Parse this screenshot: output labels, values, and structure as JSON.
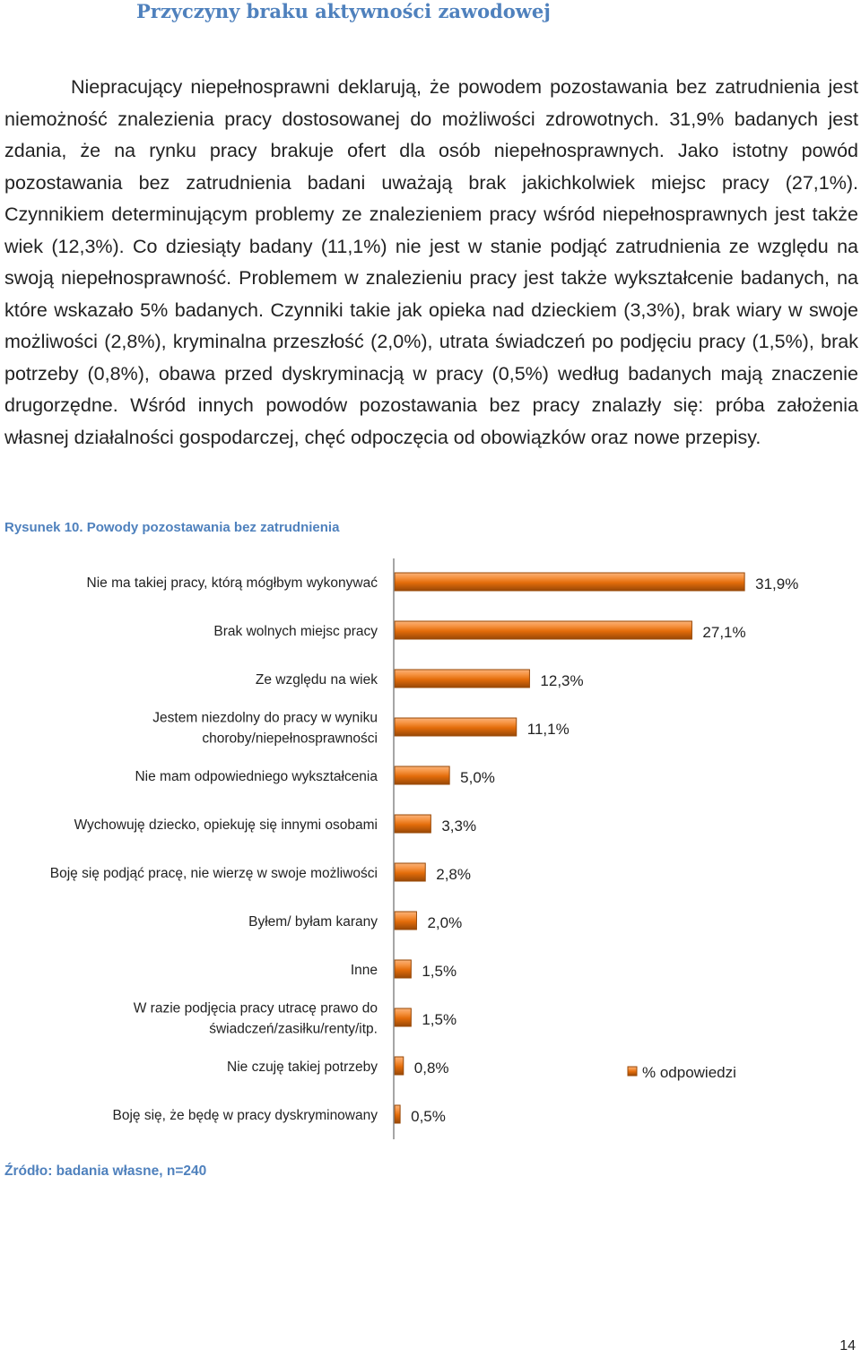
{
  "heading": "Przyczyny braku aktywności zawodowej",
  "paragraph": "Niepracujący niepełnosprawni deklarują, że powodem pozostawania bez zatrudnienia jest niemożność znalezienia pracy dostosowanej do możliwości zdrowotnych. 31,9% badanych jest zdania, że na rynku pracy brakuje ofert dla osób niepełnosprawnych. Jako istotny powód pozostawania bez zatrudnienia badani uważają brak jakichkolwiek miejsc pracy (27,1%). Czynnikiem determinującym problemy ze znalezieniem pracy wśród niepełnosprawnych jest także wiek (12,3%). Co dziesiąty badany (11,1%) nie jest w stanie podjąć zatrudnienia ze względu na swoją niepełnosprawność. Problemem w znalezieniu pracy jest także wykształcenie badanych, na które wskazało 5% badanych. Czynniki takie jak opieka nad dzieckiem (3,3%), brak wiary w swoje możliwości (2,8%), kryminalna przeszłość (2,0%), utrata świadczeń po podjęciu pracy (1,5%), brak potrzeby (0,8%), obawa przed dyskryminacją w pracy (0,5%) według badanych mają znaczenie drugorzędne. Wśród innych powodów pozostawania bez pracy znalazły się: próba założenia własnej działalności gospodarczej, chęć odpoczęcia od obowiązków oraz nowe przepisy.",
  "figure_caption": "Rysunek 10. Powody pozostawania bez zatrudnienia",
  "source": "Źródło: badania własne, n=240",
  "page_number": "14",
  "colors": {
    "accent": "#4f81bd",
    "bar": "#e36c0a",
    "bar_dark": "#984807",
    "bar_light": "#f9b27a"
  },
  "chart_data": {
    "type": "bar",
    "orientation": "horizontal",
    "categories": [
      [
        "Nie ma takiej pracy, którą mógłbym wykonywać"
      ],
      [
        "Brak wolnych miejsc pracy"
      ],
      [
        "Ze względu na wiek"
      ],
      [
        "Jestem niezdolny do pracy w wyniku",
        "choroby/niepełnosprawności"
      ],
      [
        "Nie mam odpowiedniego wykształcenia"
      ],
      [
        "Wychowuję dziecko, opiekuję się innymi osobami"
      ],
      [
        "Boję się podjąć pracę, nie wierzę w swoje możliwości"
      ],
      [
        "Byłem/ byłam karany"
      ],
      [
        "Inne"
      ],
      [
        "W razie podjęcia pracy utracę prawo do",
        "świadczeń/zasiłku/renty/itp."
      ],
      [
        "Nie czuję takiej potrzeby"
      ],
      [
        "Boję się, że będę w pracy dyskryminowany"
      ]
    ],
    "values": [
      31.9,
      27.1,
      12.3,
      11.1,
      5.0,
      3.3,
      2.8,
      2.0,
      1.5,
      1.5,
      0.8,
      0.5
    ],
    "value_labels": [
      "31,9%",
      "27,1%",
      "12,3%",
      "11,1%",
      "5,0%",
      "3,3%",
      "2,8%",
      "2,0%",
      "1,5%",
      "1,5%",
      "0,8%",
      "0,5%"
    ],
    "series": [
      {
        "name": "% odpowiedzi"
      }
    ],
    "legend": "right",
    "grid": false
  }
}
